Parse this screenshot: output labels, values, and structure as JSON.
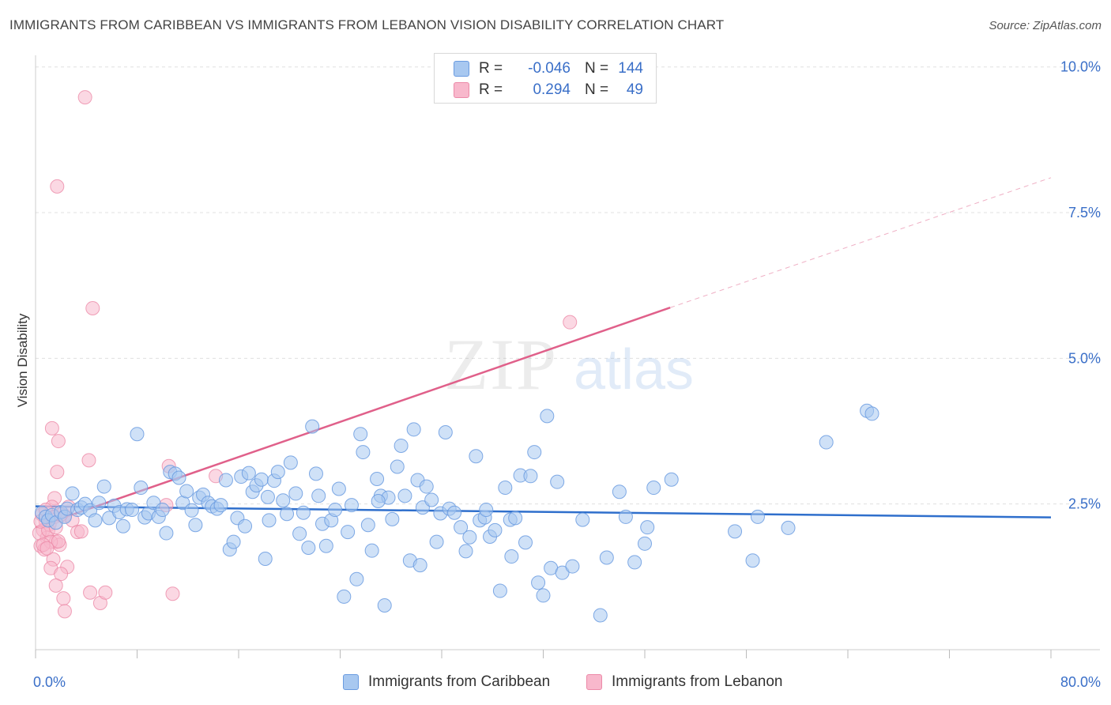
{
  "title": "IMMIGRANTS FROM CARIBBEAN VS IMMIGRANTS FROM LEBANON VISION DISABILITY CORRELATION CHART",
  "source": "Source: ZipAtlas.com",
  "watermark": {
    "zip": "ZIP",
    "atlas": "atlas"
  },
  "legend_top": [
    {
      "r_label": "R =",
      "r_value": "-0.046",
      "n_label": "N =",
      "n_value": "144"
    },
    {
      "r_label": "R =",
      "r_value": "0.294",
      "n_label": "N =",
      "n_value": "49"
    }
  ],
  "colors": {
    "blue_fill": "#a8c8f0",
    "blue_stroke": "#6a9be0",
    "blue_line": "#2f6fcc",
    "pink_fill": "#f8b8cc",
    "pink_stroke": "#ec8aa8",
    "pink_line": "#e0608a",
    "axis_text": "#3a6fc8",
    "grid": "#e0e0e0"
  },
  "chart_data": {
    "type": "scatter",
    "title": "IMMIGRANTS FROM CARIBBEAN VS IMMIGRANTS FROM LEBANON VISION DISABILITY CORRELATION CHART",
    "xlabel": "",
    "ylabel": "Vision Disability",
    "xlim": [
      0,
      80
    ],
    "ylim": [
      0,
      10.2
    ],
    "x_tick_labels": [
      "0.0%",
      "80.0%"
    ],
    "y_ticks": [
      2.5,
      5.0,
      7.5,
      10.0
    ],
    "y_tick_labels": [
      "2.5%",
      "5.0%",
      "7.5%",
      "10.0%"
    ],
    "legend_position": "bottom",
    "series": [
      {
        "name": "Immigrants from Caribbean",
        "color": "#a8c8f0",
        "trend": {
          "x": [
            0,
            80
          ],
          "y": [
            2.46,
            2.27
          ],
          "dashed_to": null
        },
        "points": [
          [
            0.5,
            2.35
          ],
          [
            0.8,
            2.28
          ],
          [
            1.0,
            2.22
          ],
          [
            1.3,
            2.31
          ],
          [
            1.6,
            2.18
          ],
          [
            2.0,
            2.36
          ],
          [
            2.3,
            2.28
          ],
          [
            2.5,
            2.42
          ],
          [
            2.9,
            2.68
          ],
          [
            3.3,
            2.4
          ],
          [
            3.6,
            2.44
          ],
          [
            3.9,
            2.5
          ],
          [
            4.3,
            2.39
          ],
          [
            4.7,
            2.22
          ],
          [
            5.0,
            2.52
          ],
          [
            5.4,
            2.8
          ],
          [
            5.8,
            2.26
          ],
          [
            6.2,
            2.47
          ],
          [
            6.6,
            2.36
          ],
          [
            6.9,
            2.12
          ],
          [
            7.2,
            2.41
          ],
          [
            7.6,
            2.4
          ],
          [
            8.0,
            3.7
          ],
          [
            8.3,
            2.78
          ],
          [
            8.6,
            2.27
          ],
          [
            8.9,
            2.34
          ],
          [
            9.3,
            2.52
          ],
          [
            9.7,
            2.28
          ],
          [
            10.0,
            2.4
          ],
          [
            10.3,
            2.0
          ],
          [
            10.6,
            3.05
          ],
          [
            11.0,
            3.02
          ],
          [
            11.3,
            2.95
          ],
          [
            11.6,
            2.52
          ],
          [
            11.9,
            2.72
          ],
          [
            12.3,
            2.39
          ],
          [
            12.6,
            2.14
          ],
          [
            12.9,
            2.61
          ],
          [
            13.2,
            2.66
          ],
          [
            13.6,
            2.52
          ],
          [
            13.9,
            2.46
          ],
          [
            14.3,
            2.42
          ],
          [
            14.6,
            2.48
          ],
          [
            15.0,
            2.91
          ],
          [
            15.3,
            1.72
          ],
          [
            15.6,
            1.85
          ],
          [
            15.9,
            2.26
          ],
          [
            16.2,
            2.97
          ],
          [
            16.5,
            2.12
          ],
          [
            16.8,
            3.03
          ],
          [
            17.1,
            2.71
          ],
          [
            17.4,
            2.82
          ],
          [
            17.8,
            2.92
          ],
          [
            18.1,
            1.56
          ],
          [
            18.4,
            2.22
          ],
          [
            18.8,
            2.9
          ],
          [
            19.1,
            3.05
          ],
          [
            19.5,
            2.56
          ],
          [
            19.8,
            2.33
          ],
          [
            20.1,
            3.21
          ],
          [
            20.5,
            2.68
          ],
          [
            20.8,
            1.99
          ],
          [
            21.1,
            2.35
          ],
          [
            21.5,
            1.75
          ],
          [
            21.8,
            3.83
          ],
          [
            22.1,
            3.02
          ],
          [
            22.3,
            2.64
          ],
          [
            22.6,
            2.16
          ],
          [
            22.9,
            1.78
          ],
          [
            23.3,
            2.22
          ],
          [
            23.6,
            2.4
          ],
          [
            23.9,
            2.76
          ],
          [
            24.3,
            0.91
          ],
          [
            24.6,
            2.02
          ],
          [
            24.9,
            2.48
          ],
          [
            25.3,
            1.21
          ],
          [
            25.6,
            3.7
          ],
          [
            25.8,
            3.39
          ],
          [
            26.2,
            2.14
          ],
          [
            26.5,
            1.7
          ],
          [
            26.9,
            2.93
          ],
          [
            27.2,
            2.64
          ],
          [
            27.5,
            0.76
          ],
          [
            27.8,
            2.61
          ],
          [
            28.1,
            2.24
          ],
          [
            28.5,
            3.14
          ],
          [
            28.8,
            3.5
          ],
          [
            29.1,
            2.64
          ],
          [
            29.5,
            1.53
          ],
          [
            29.8,
            3.78
          ],
          [
            30.1,
            2.91
          ],
          [
            30.5,
            2.44
          ],
          [
            30.8,
            2.8
          ],
          [
            31.2,
            2.57
          ],
          [
            31.6,
            1.85
          ],
          [
            31.9,
            2.34
          ],
          [
            32.3,
            3.73
          ],
          [
            32.6,
            2.42
          ],
          [
            33.0,
            2.35
          ],
          [
            33.5,
            2.1
          ],
          [
            33.9,
            1.69
          ],
          [
            34.2,
            1.93
          ],
          [
            34.7,
            3.32
          ],
          [
            35.0,
            2.22
          ],
          [
            35.4,
            2.27
          ],
          [
            35.8,
            1.94
          ],
          [
            36.2,
            2.05
          ],
          [
            36.6,
            1.01
          ],
          [
            37.0,
            2.78
          ],
          [
            37.4,
            2.23
          ],
          [
            37.8,
            2.26
          ],
          [
            38.2,
            2.99
          ],
          [
            38.6,
            1.84
          ],
          [
            39.0,
            2.98
          ],
          [
            39.3,
            3.39
          ],
          [
            39.6,
            1.15
          ],
          [
            40.0,
            0.93
          ],
          [
            40.3,
            4.01
          ],
          [
            40.6,
            1.4
          ],
          [
            41.1,
            2.88
          ],
          [
            41.5,
            1.32
          ],
          [
            42.3,
            1.43
          ],
          [
            43.1,
            2.23
          ],
          [
            44.5,
            0.59
          ],
          [
            45.0,
            1.58
          ],
          [
            46.0,
            2.71
          ],
          [
            46.5,
            2.28
          ],
          [
            47.2,
            1.5
          ],
          [
            48.0,
            1.82
          ],
          [
            48.7,
            2.78
          ],
          [
            50.1,
            2.92
          ],
          [
            55.1,
            2.03
          ],
          [
            56.5,
            1.53
          ],
          [
            56.9,
            2.28
          ],
          [
            59.3,
            2.09
          ],
          [
            62.3,
            3.56
          ],
          [
            65.5,
            4.1
          ],
          [
            65.9,
            4.05
          ],
          [
            35.5,
            2.4
          ],
          [
            30.3,
            1.45
          ],
          [
            18.3,
            2.62
          ],
          [
            27.0,
            2.55
          ],
          [
            37.5,
            1.6
          ],
          [
            48.2,
            2.1
          ]
        ]
      },
      {
        "name": "Immigrants from Lebanon",
        "color": "#f8b8cc",
        "trend": {
          "x": [
            0,
            50
          ],
          "y": [
            2.1,
            5.87
          ],
          "dashed_to": [
            80,
            8.1
          ]
        },
        "points": [
          [
            3.9,
            9.48
          ],
          [
            1.7,
            7.95
          ],
          [
            4.5,
            5.86
          ],
          [
            42.1,
            5.62
          ],
          [
            1.3,
            3.8
          ],
          [
            1.8,
            3.58
          ],
          [
            4.2,
            3.25
          ],
          [
            1.7,
            3.05
          ],
          [
            10.5,
            3.15
          ],
          [
            14.2,
            2.98
          ],
          [
            1.5,
            2.6
          ],
          [
            0.5,
            2.32
          ],
          [
            0.8,
            2.2
          ],
          [
            1.1,
            2.15
          ],
          [
            1.3,
            2.45
          ],
          [
            0.6,
            2.05
          ],
          [
            0.9,
            1.92
          ],
          [
            1.6,
            1.85
          ],
          [
            0.4,
            1.78
          ],
          [
            0.7,
            1.72
          ],
          [
            1.9,
            1.8
          ],
          [
            2.3,
            2.3
          ],
          [
            2.6,
            2.45
          ],
          [
            2.9,
            2.22
          ],
          [
            3.3,
            2.02
          ],
          [
            3.6,
            2.03
          ],
          [
            0.3,
            2.0
          ],
          [
            1.0,
            2.05
          ],
          [
            1.2,
            1.85
          ],
          [
            1.8,
            1.86
          ],
          [
            0.6,
            1.8
          ],
          [
            1.4,
            1.55
          ],
          [
            1.2,
            1.4
          ],
          [
            2.5,
            1.42
          ],
          [
            2.0,
            1.3
          ],
          [
            1.6,
            1.1
          ],
          [
            2.2,
            0.88
          ],
          [
            2.3,
            0.66
          ],
          [
            4.3,
            0.98
          ],
          [
            5.1,
            0.8
          ],
          [
            5.5,
            0.98
          ],
          [
            10.8,
            0.96
          ],
          [
            10.3,
            2.48
          ],
          [
            0.4,
            2.2
          ],
          [
            0.8,
            2.4
          ],
          [
            1.5,
            2.28
          ],
          [
            2.0,
            2.32
          ],
          [
            0.9,
            1.74
          ],
          [
            1.6,
            2.1
          ]
        ]
      }
    ]
  },
  "legend_bottom": [
    {
      "label": "Immigrants from Caribbean"
    },
    {
      "label": "Immigrants from Lebanon"
    }
  ]
}
